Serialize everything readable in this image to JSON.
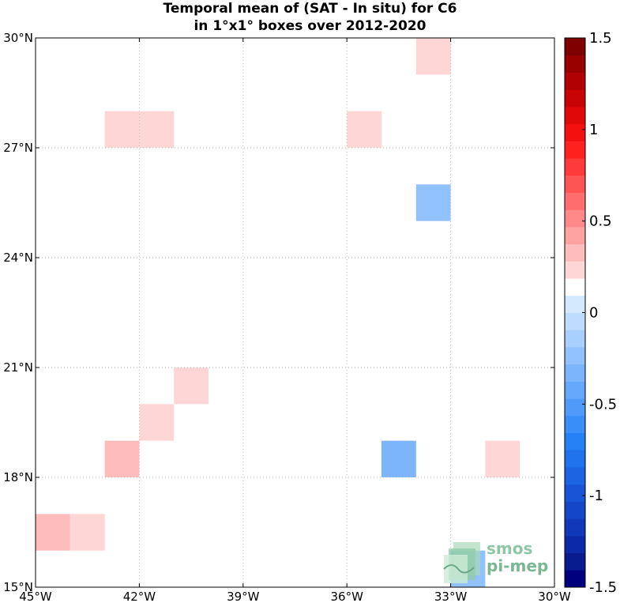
{
  "title": {
    "line1": "Temporal mean of (SAT - In situ) for C6",
    "line2": "in 1°x1° boxes over 2012-2020"
  },
  "logo": {
    "line1": "smos",
    "line2": "pi-mep"
  },
  "chart_data": {
    "type": "heatmap",
    "title": "Temporal mean of (SAT - In situ) for C6 in 1°x1° boxes over 2012-2020",
    "xlim": [
      -45,
      -30
    ],
    "ylim": [
      15,
      30
    ],
    "grid": true,
    "x_ticks": [
      {
        "value": -45,
        "label": "45°W"
      },
      {
        "value": -42,
        "label": "42°W"
      },
      {
        "value": -39,
        "label": "39°W"
      },
      {
        "value": -36,
        "label": "36°W"
      },
      {
        "value": -33,
        "label": "33°W"
      },
      {
        "value": -30,
        "label": "30°W"
      }
    ],
    "y_ticks": [
      {
        "value": 15,
        "label": "15°N"
      },
      {
        "value": 18,
        "label": "18°N"
      },
      {
        "value": 21,
        "label": "21°N"
      },
      {
        "value": 24,
        "label": "24°N"
      },
      {
        "value": 27,
        "label": "27°N"
      },
      {
        "value": 30,
        "label": "30°N"
      }
    ],
    "colorbar": {
      "range": [
        -1.5,
        1.5
      ],
      "levels": 32,
      "ticks": [
        {
          "value": 1.5,
          "label": "1.5"
        },
        {
          "value": 1,
          "label": "1"
        },
        {
          "value": 0.5,
          "label": "0.5"
        },
        {
          "value": 0,
          "label": "0"
        },
        {
          "value": -0.5,
          "label": "-0.5"
        },
        {
          "value": -1,
          "label": "-1"
        },
        {
          "value": -1.5,
          "label": "-1.5"
        }
      ],
      "colors": [
        "#00007f",
        "#0a1a8f",
        "#0d2aa6",
        "#1038b8",
        "#1446c8",
        "#1855d6",
        "#1c64e2",
        "#2073ed",
        "#2580f5",
        "#3a8ef8",
        "#509bfa",
        "#66a8fb",
        "#7cb5fc",
        "#92c2fd",
        "#a8cffd",
        "#bedcfe",
        "#d4e9fe",
        "#ffffff",
        "#ffd6d6",
        "#ffbcbc",
        "#ffa2a2",
        "#ff8888",
        "#ff6e6e",
        "#ff5454",
        "#ff3a3a",
        "#ff2020",
        "#f51010",
        "#e00808",
        "#c80404",
        "#b00202",
        "#980000",
        "#7f0000"
      ]
    },
    "cells": [
      {
        "lon": -34,
        "lat": 29,
        "value": 0.2
      },
      {
        "lon": -43,
        "lat": 27,
        "value": 0.2
      },
      {
        "lon": -42,
        "lat": 27,
        "value": 0.2
      },
      {
        "lon": -36,
        "lat": 27,
        "value": 0.2
      },
      {
        "lon": -34,
        "lat": 25,
        "value": -0.2
      },
      {
        "lon": -41,
        "lat": 20,
        "value": 0.2
      },
      {
        "lon": -42,
        "lat": 19,
        "value": 0.2
      },
      {
        "lon": -43,
        "lat": 18,
        "value": 0.35
      },
      {
        "lon": -35,
        "lat": 18,
        "value": -0.3
      },
      {
        "lon": -32,
        "lat": 18,
        "value": 0.2
      },
      {
        "lon": -45,
        "lat": 16,
        "value": 0.35
      },
      {
        "lon": -44,
        "lat": 16,
        "value": 0.2
      },
      {
        "lon": -33,
        "lat": 15,
        "value": -0.2
      }
    ]
  }
}
